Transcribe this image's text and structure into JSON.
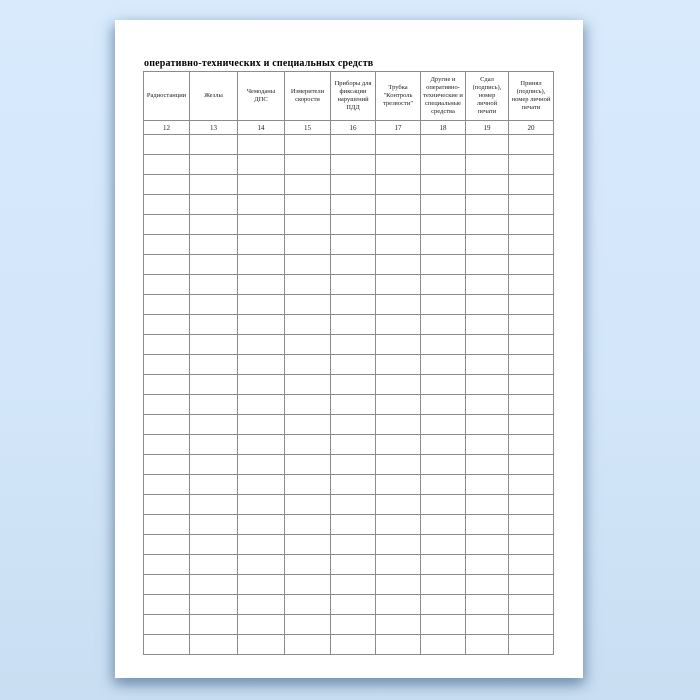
{
  "document": {
    "title": "оперативно-технических и специальных средств"
  },
  "table": {
    "columns": [
      {
        "header": "Радиостанции",
        "number": "12"
      },
      {
        "header": "Жезлы",
        "number": "13"
      },
      {
        "header": "Чемоданы ДПС",
        "number": "14"
      },
      {
        "header": "Измерители скорости",
        "number": "15"
      },
      {
        "header": "Приборы для фиксации нарушений ПДД",
        "number": "16"
      },
      {
        "header": "Трубка \"Контроль трезвости\"",
        "number": "17"
      },
      {
        "header": "Другие и оперативно-технические и специальные средства",
        "number": "18"
      },
      {
        "header": "Сдал (подпись), номер личной печати",
        "number": "19"
      },
      {
        "header": "Принял (подпись), номер личной печати",
        "number": "20"
      }
    ],
    "empty_row_count": 26
  },
  "colors": {
    "background_top": "#d8eafc",
    "background_bottom": "#c9def2",
    "page": "#ffffff",
    "table_border": "#8c8c8c",
    "text": "#1a1a1a"
  }
}
